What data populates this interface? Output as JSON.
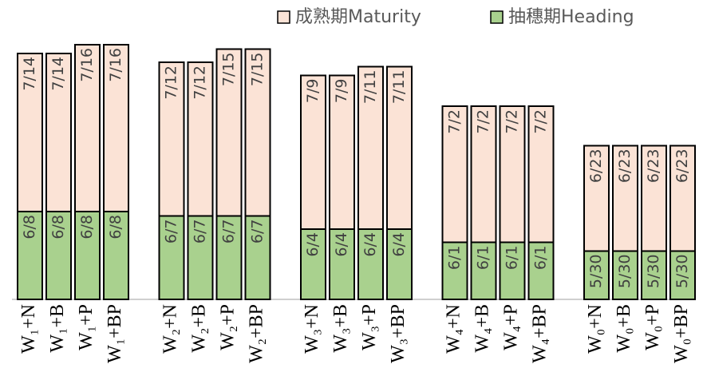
{
  "chart_data": {
    "type": "stacked_bar",
    "categories": [
      "W₁+N",
      "W₁+B",
      "W₁+P",
      "W₁+BP",
      "W₂+N",
      "W₂+B",
      "W₂+P",
      "W₂+BP",
      "W₃+N",
      "W₃+B",
      "W₃+P",
      "W₃+BP",
      "W₄+N",
      "W₄+B",
      "W₄+P",
      "W₄+BP",
      "W₀+N",
      "W₀+B",
      "W₀+P",
      "W₀+BP"
    ],
    "series": [
      {
        "name": "抽穗期Heading",
        "color": "#a9d18e",
        "values": [
          20,
          20,
          20,
          20,
          19,
          19,
          19,
          19,
          16,
          16,
          16,
          16,
          13,
          13,
          13,
          13,
          11,
          11,
          11,
          11
        ],
        "value_labels": [
          "6/8",
          "6/8",
          "6/8",
          "6/8",
          "6/7",
          "6/7",
          "6/7",
          "6/7",
          "6/4",
          "6/4",
          "6/4",
          "6/4",
          "6/1",
          "6/1",
          "6/1",
          "6/1",
          "5/30",
          "5/30",
          "5/30",
          "5/30"
        ]
      },
      {
        "name": "成熟期Maturity",
        "color": "#fbe3d6",
        "values": [
          36,
          36,
          38,
          38,
          35,
          35,
          38,
          38,
          35,
          35,
          37,
          37,
          31,
          31,
          31,
          31,
          24,
          24,
          24,
          24
        ],
        "value_labels": [
          "7/14",
          "7/14",
          "7/16",
          "7/16",
          "7/12",
          "7/12",
          "7/15",
          "7/15",
          "7/9",
          "7/9",
          "7/11",
          "7/11",
          "7/2",
          "7/2",
          "7/2",
          "7/2",
          "6/23",
          "6/23",
          "6/23",
          "6/23"
        ]
      }
    ],
    "ylim": [
      0,
      60
    ],
    "legend": "top"
  }
}
